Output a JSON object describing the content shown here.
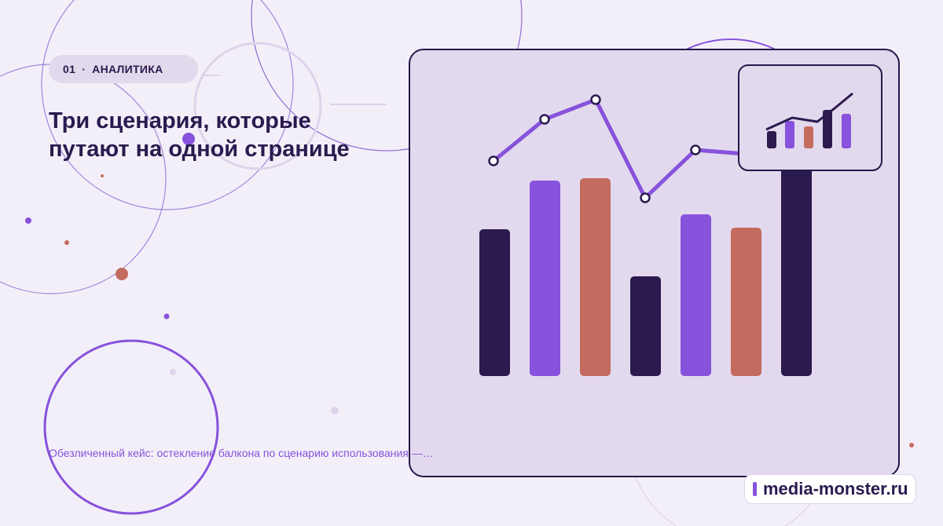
{
  "badge": {
    "number": "01",
    "separator": "·",
    "label": "АНАЛИТИКА"
  },
  "title": "Три сценария, которые путают на одной странице",
  "description": "Обезличенный кейс: остекление балкона по сценарию использования —…",
  "brand": "media-monster.ru"
}
